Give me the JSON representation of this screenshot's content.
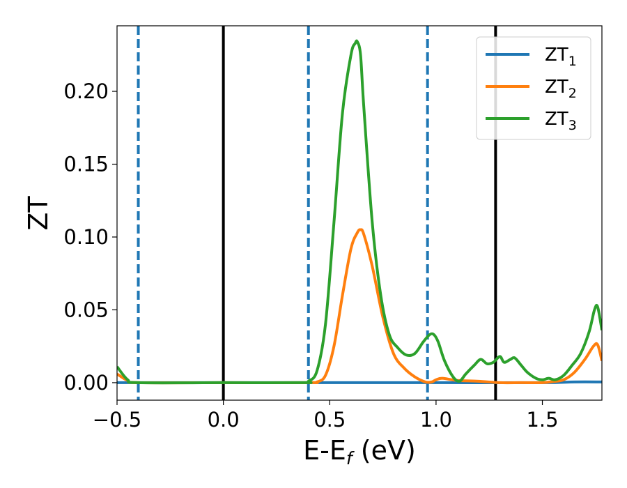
{
  "chart_data": {
    "type": "line",
    "xlabel": {
      "main": "E-E",
      "sub": "f",
      "suffix": " (eV)"
    },
    "ylabel": "ZT",
    "xlim": [
      -0.5,
      1.78
    ],
    "ylim": [
      -0.012,
      0.245
    ],
    "xticks": [
      {
        "value": -0.5,
        "label": "−0.5"
      },
      {
        "value": 0.0,
        "label": "0.0"
      },
      {
        "value": 0.5,
        "label": "0.5"
      },
      {
        "value": 1.0,
        "label": "1.0"
      },
      {
        "value": 1.5,
        "label": "1.5"
      }
    ],
    "yticks": [
      {
        "value": 0.0,
        "label": "0.00"
      },
      {
        "value": 0.05,
        "label": "0.05"
      },
      {
        "value": 0.1,
        "label": "0.10"
      },
      {
        "value": 0.15,
        "label": "0.15"
      },
      {
        "value": 0.2,
        "label": "0.20"
      }
    ],
    "grid": false,
    "legend_position": "top-right",
    "reference_lines": [
      {
        "x": -0.4,
        "style": "dashed",
        "color": "#1f77b4"
      },
      {
        "x": 0.0,
        "style": "solid",
        "color": "#000000"
      },
      {
        "x": 0.4,
        "style": "dashed",
        "color": "#1f77b4"
      },
      {
        "x": 0.96,
        "style": "dashed",
        "color": "#1f77b4"
      },
      {
        "x": 1.28,
        "style": "solid",
        "color": "#000000"
      }
    ],
    "series": [
      {
        "name": "ZT",
        "subscript": "1",
        "color": "#1f77b4",
        "x": [
          -0.5,
          -0.45,
          -0.4,
          0.0,
          0.5,
          1.0,
          1.5,
          1.65,
          1.78
        ],
        "y": [
          0.0,
          0.0,
          0.0,
          0.0,
          0.0,
          0.0,
          0.0,
          0.0005,
          0.0005
        ]
      },
      {
        "name": "ZT",
        "subscript": "2",
        "color": "#ff7f0e",
        "x": [
          -0.5,
          -0.45,
          -0.4,
          0.0,
          0.4,
          0.44,
          0.48,
          0.52,
          0.56,
          0.6,
          0.63,
          0.645,
          0.66,
          0.7,
          0.75,
          0.8,
          0.85,
          0.9,
          0.95,
          0.98,
          1.0,
          1.03,
          1.1,
          1.2,
          1.3,
          1.4,
          1.5,
          1.55,
          1.6,
          1.65,
          1.7,
          1.74,
          1.76,
          1.78
        ],
        "y": [
          0.006,
          0.0015,
          0.0,
          0.0,
          0.0,
          0.0005,
          0.005,
          0.025,
          0.06,
          0.092,
          0.103,
          0.105,
          0.102,
          0.08,
          0.045,
          0.02,
          0.01,
          0.004,
          0.0005,
          0.0005,
          0.002,
          0.003,
          0.0015,
          0.001,
          0.0,
          0.0,
          0.0,
          0.0008,
          0.002,
          0.007,
          0.016,
          0.025,
          0.026,
          0.015
        ]
      },
      {
        "name": "ZT",
        "subscript": "3",
        "color": "#2ca02c",
        "x": [
          -0.5,
          -0.45,
          -0.4,
          0.0,
          0.38,
          0.4,
          0.44,
          0.48,
          0.52,
          0.56,
          0.6,
          0.62,
          0.63,
          0.645,
          0.66,
          0.7,
          0.74,
          0.78,
          0.82,
          0.86,
          0.9,
          0.94,
          0.97,
          0.99,
          1.01,
          1.04,
          1.08,
          1.11,
          1.14,
          1.18,
          1.21,
          1.24,
          1.27,
          1.3,
          1.32,
          1.35,
          1.37,
          1.4,
          1.43,
          1.47,
          1.5,
          1.53,
          1.56,
          1.6,
          1.64,
          1.68,
          1.72,
          1.745,
          1.76,
          1.78
        ],
        "y": [
          0.011,
          0.002,
          0.0,
          0.0,
          0.0,
          0.001,
          0.008,
          0.04,
          0.11,
          0.185,
          0.225,
          0.233,
          0.234,
          0.225,
          0.19,
          0.11,
          0.06,
          0.033,
          0.024,
          0.019,
          0.02,
          0.028,
          0.033,
          0.033,
          0.028,
          0.015,
          0.004,
          0.001,
          0.006,
          0.012,
          0.016,
          0.013,
          0.014,
          0.018,
          0.014,
          0.016,
          0.017,
          0.012,
          0.007,
          0.003,
          0.002,
          0.003,
          0.002,
          0.005,
          0.012,
          0.02,
          0.035,
          0.05,
          0.052,
          0.036
        ]
      }
    ]
  }
}
